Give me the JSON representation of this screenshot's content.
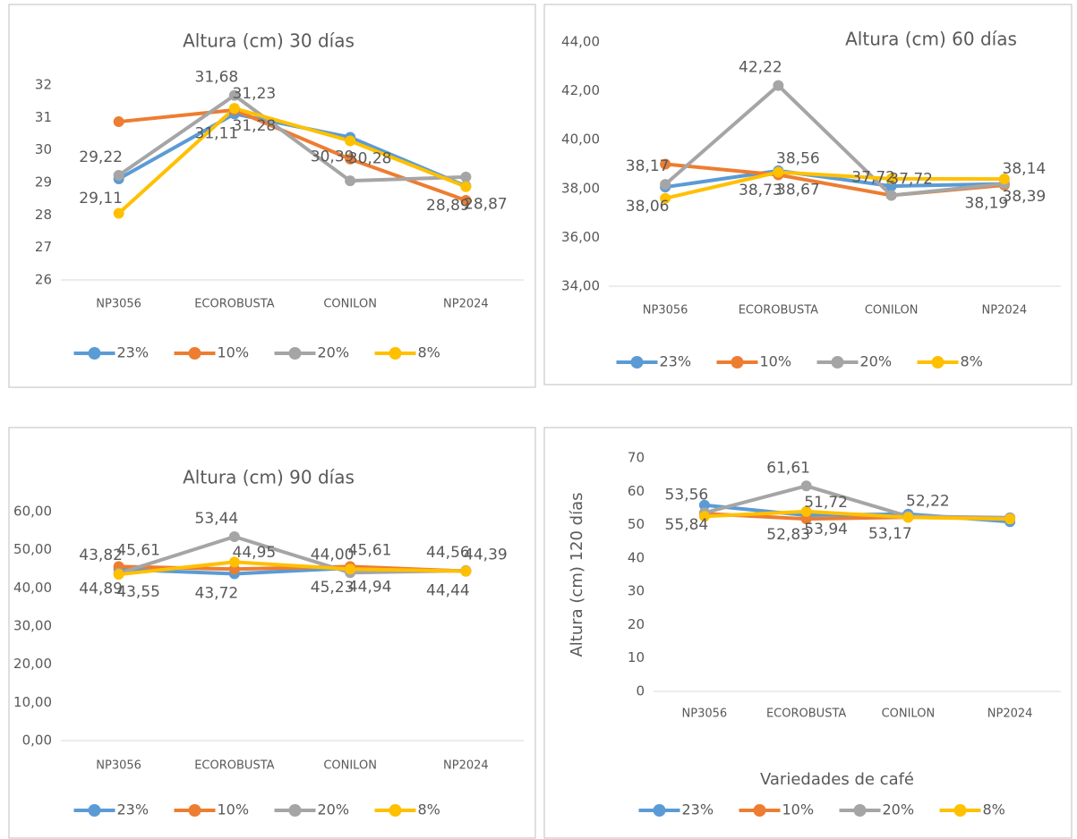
{
  "chart_data": [
    {
      "type": "line",
      "title": "Altura (cm) 30 días",
      "categories": [
        "NP3056",
        "ECOROBUSTA",
        "CONILON",
        "NP2024"
      ],
      "ylim": [
        26,
        32
      ],
      "yticks": [
        26,
        27,
        28,
        29,
        30,
        31,
        32
      ],
      "legend": "bottom",
      "series": [
        {
          "name": "23%",
          "color": "#5b9bd5",
          "values": [
            29.11,
            31.11,
            30.39,
            28.89
          ],
          "value_labels": [
            "29,11",
            "31,11",
            "30,39",
            "28,89"
          ]
        },
        {
          "name": "10%",
          "color": "#ed7d31",
          "values": [
            30.87,
            31.23,
            29.72,
            28.45
          ],
          "value_labels": [
            null,
            "31,23",
            null,
            null
          ]
        },
        {
          "name": "20%",
          "color": "#a5a5a5",
          "values": [
            29.22,
            31.68,
            29.05,
            29.17
          ],
          "value_labels": [
            "29,22",
            "31,68",
            null,
            null
          ]
        },
        {
          "name": "8%",
          "color": "#ffc000",
          "values": [
            28.05,
            31.28,
            30.28,
            28.87
          ],
          "value_labels": [
            null,
            "31,28",
            "30,28",
            "28,87"
          ]
        }
      ]
    },
    {
      "type": "line",
      "title": "Altura (cm) 60 días",
      "categories": [
        "NP3056",
        "ECOROBUSTA",
        "CONILON",
        "NP2024"
      ],
      "ylim": [
        34,
        44
      ],
      "yticks": [
        {
          "value": 34,
          "label": "34,00"
        },
        {
          "value": 36,
          "label": "36,00"
        },
        {
          "value": 38,
          "label": "38,00"
        },
        {
          "value": 40,
          "label": "40,00"
        },
        {
          "value": 42,
          "label": "42,00"
        },
        {
          "value": 44,
          "label": "44,00"
        }
      ],
      "legend": "bottom",
      "series": [
        {
          "name": "23%",
          "color": "#5b9bd5",
          "values": [
            38.06,
            38.73,
            38.1,
            38.19
          ],
          "value_labels": [
            "38,06",
            "38,73",
            null,
            "38,19"
          ]
        },
        {
          "name": "10%",
          "color": "#ed7d31",
          "values": [
            39.0,
            38.56,
            37.72,
            38.14
          ],
          "value_labels": [
            null,
            "38,56",
            "37,72",
            "38,14"
          ]
        },
        {
          "name": "20%",
          "color": "#a5a5a5",
          "values": [
            38.17,
            42.22,
            37.72,
            38.2
          ],
          "value_labels": [
            "38,17",
            "42,22",
            "37,72",
            null
          ]
        },
        {
          "name": "8%",
          "color": "#ffc000",
          "values": [
            37.6,
            38.67,
            38.4,
            38.39
          ],
          "value_labels": [
            null,
            "38,67",
            null,
            "38,39"
          ]
        }
      ]
    },
    {
      "type": "line",
      "title": "Altura (cm) 90 días",
      "categories": [
        "NP3056",
        "ECOROBUSTA",
        "CONILON",
        "NP2024"
      ],
      "ylim": [
        0,
        60
      ],
      "yticks": [
        {
          "value": 0,
          "label": "0,00"
        },
        {
          "value": 10,
          "label": "10,00"
        },
        {
          "value": 20,
          "label": "20,00"
        },
        {
          "value": 30,
          "label": "30,00"
        },
        {
          "value": 40,
          "label": "40,00"
        },
        {
          "value": 50,
          "label": "50,00"
        },
        {
          "value": 60,
          "label": "60,00"
        }
      ],
      "legend": "bottom",
      "series": [
        {
          "name": "23%",
          "color": "#5b9bd5",
          "values": [
            44.89,
            43.72,
            45.23,
            44.44
          ],
          "value_labels": [
            "44,89",
            "43,72",
            "45,23",
            "44,44"
          ]
        },
        {
          "name": "10%",
          "color": "#ed7d31",
          "values": [
            45.61,
            44.95,
            45.61,
            44.39
          ],
          "value_labels": [
            "45,61",
            "44,95",
            "45,61",
            "44,39"
          ]
        },
        {
          "name": "20%",
          "color": "#a5a5a5",
          "values": [
            43.82,
            53.44,
            44.0,
            44.56
          ],
          "value_labels": [
            "43,82",
            "53,44",
            "44,00",
            "44,56"
          ]
        },
        {
          "name": "8%",
          "color": "#ffc000",
          "values": [
            43.55,
            46.8,
            44.94,
            44.4
          ],
          "value_labels": [
            "43,55",
            null,
            "44,94",
            null
          ]
        }
      ]
    },
    {
      "type": "line",
      "y_label": "Altura (cm) 120 días",
      "x_label": "Variedades de café",
      "categories": [
        "NP3056",
        "ECOROBUSTA",
        "CONILON",
        "NP2024"
      ],
      "ylim": [
        0,
        70
      ],
      "yticks": [
        0,
        10,
        20,
        30,
        40,
        50,
        60,
        70
      ],
      "legend": "bottom",
      "series": [
        {
          "name": "23%",
          "color": "#5b9bd5",
          "values": [
            55.84,
            52.83,
            53.17,
            50.9
          ],
          "value_labels": [
            "55,84",
            "52,83",
            "53,17",
            null
          ]
        },
        {
          "name": "10%",
          "color": "#ed7d31",
          "values": [
            53.3,
            51.72,
            52.22,
            52.0
          ],
          "value_labels": [
            null,
            "51,72",
            "52,22",
            null
          ]
        },
        {
          "name": "20%",
          "color": "#a5a5a5",
          "values": [
            53.56,
            61.61,
            52.5,
            52.1
          ],
          "value_labels": [
            "53,56",
            "61,61",
            null,
            null
          ]
        },
        {
          "name": "8%",
          "color": "#ffc000",
          "values": [
            52.5,
            53.94,
            52.2,
            51.7
          ],
          "value_labels": [
            null,
            "53,94",
            null,
            null
          ]
        }
      ]
    }
  ]
}
